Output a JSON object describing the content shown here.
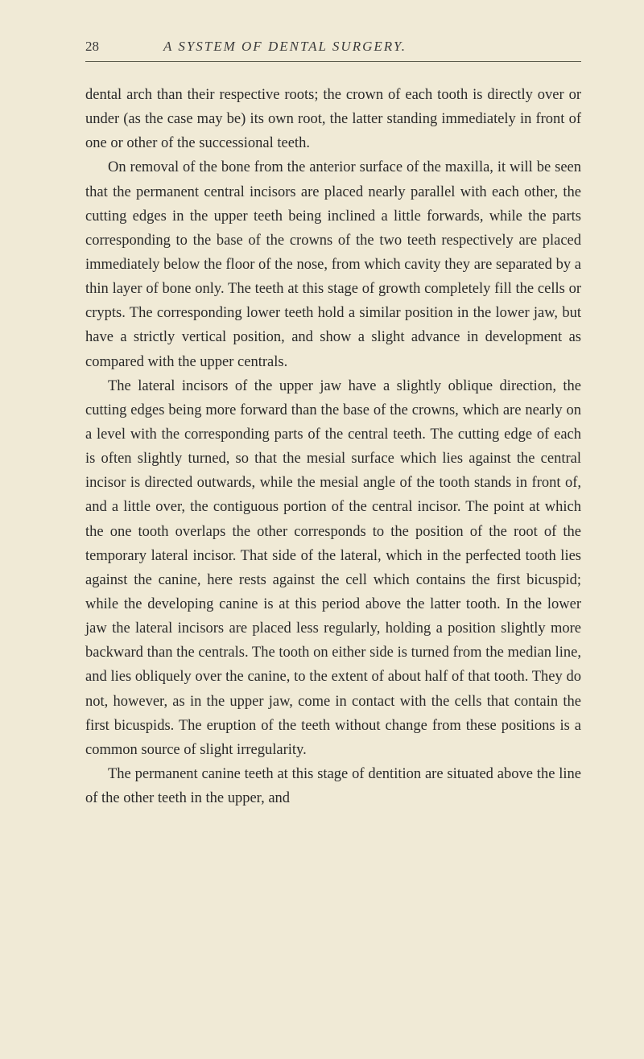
{
  "header": {
    "page_number": "28",
    "running_title": "A SYSTEM OF DENTAL SURGERY."
  },
  "paragraphs": {
    "p1": "dental arch than their respective roots; the crown of each tooth is directly over or under (as the case may be) its own root, the latter standing immediately in front of one or other of the successional teeth.",
    "p2": "On removal of the bone from the anterior surface of the maxilla, it will be seen that the permanent central incisors are placed nearly parallel with each other, the cutting edges in the upper teeth being inclined a little forwards, while the parts corresponding to the base of the crowns of the two teeth respectively are placed immediately below the floor of the nose, from which cavity they are separated by a thin layer of bone only. The teeth at this stage of growth completely fill the cells or crypts. The corresponding lower teeth hold a similar position in the lower jaw, but have a strictly vertical position, and show a slight advance in development as compared with the upper centrals.",
    "p3": "The lateral incisors of the upper jaw have a slightly oblique direction, the cutting edges being more forward than the base of the crowns, which are nearly on a level with the corresponding parts of the central teeth. The cutting edge of each is often slightly turned, so that the mesial surface which lies against the central incisor is directed outwards, while the mesial angle of the tooth stands in front of, and a little over, the contiguous portion of the central incisor. The point at which the one tooth overlaps the other corresponds to the position of the root of the temporary lateral incisor. That side of the lateral, which in the perfected tooth lies against the canine, here rests against the cell which contains the first bicuspid; while the developing canine is at this period above the latter tooth. In the lower jaw the lateral incisors are placed less regularly, holding a position slightly more backward than the centrals. The tooth on either side is turned from the median line, and lies obliquely over the canine, to the extent of about half of that tooth. They do not, however, as in the upper jaw, come in contact with the cells that contain the first bicuspids. The eruption of the teeth without change from these positions is a common source of slight irregularity.",
    "p4": "The permanent canine teeth at this stage of dentition are situated above the line of the other teeth in the upper, and"
  },
  "colors": {
    "page_background": "#f0ead6",
    "text_color": "#2a2a2a",
    "header_text_color": "#3a3a3a",
    "rule_color": "#5a5a4a"
  },
  "typography": {
    "body_font_size": 18.5,
    "body_line_height": 1.63,
    "header_font_size": 17,
    "header_letter_spacing": 2,
    "paragraph_indent": 28
  }
}
